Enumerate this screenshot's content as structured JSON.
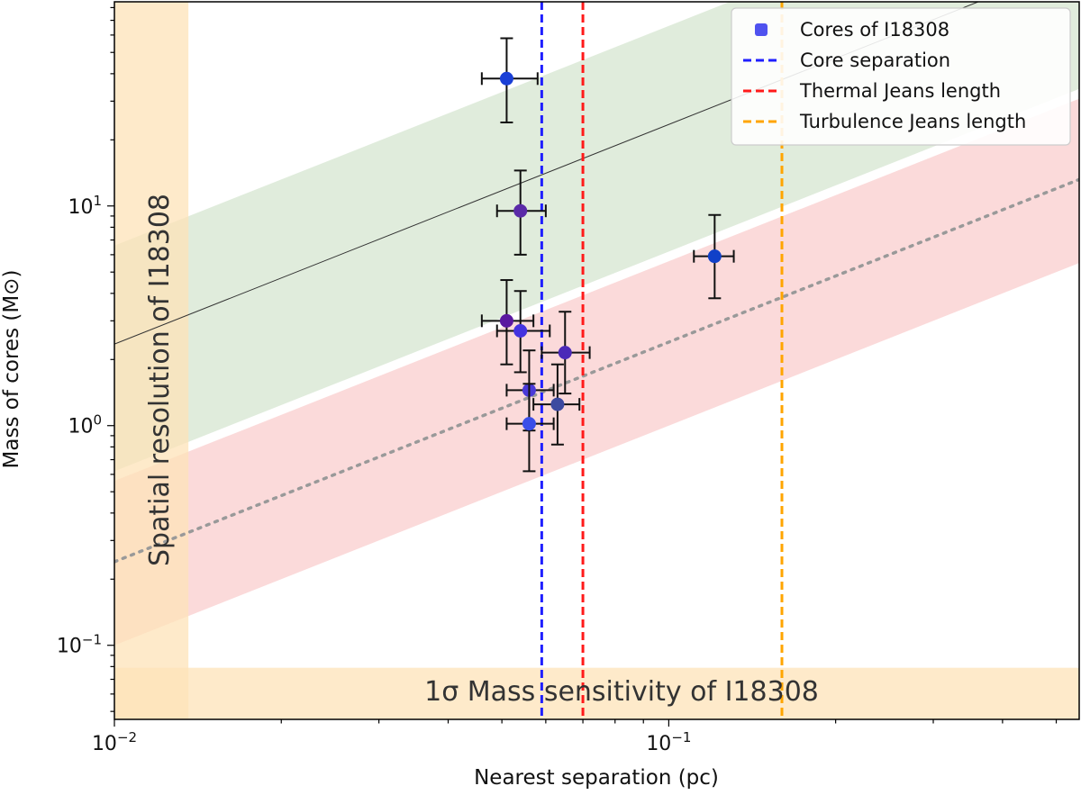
{
  "chart_data": {
    "type": "scatter",
    "xscale": "log",
    "yscale": "log",
    "xlim": [
      0.01,
      0.55
    ],
    "ylim": [
      0.046,
      85
    ],
    "xlabel": "Nearest separation (pc)",
    "ylabel": "Mass of cores (M⊙)",
    "x_ticks": [
      {
        "value": 0.01,
        "base": "10",
        "exp": "−2"
      },
      {
        "value": 0.1,
        "base": "10",
        "exp": "−1"
      }
    ],
    "y_ticks": [
      {
        "value": 0.1,
        "base": "10",
        "exp": "−1"
      },
      {
        "value": 1,
        "base": "10",
        "exp": "0"
      },
      {
        "value": 10,
        "base": "10",
        "exp": "1"
      }
    ],
    "series": [
      {
        "name": "Cores of I18308",
        "points": [
          {
            "x": 0.051,
            "y": 38,
            "xerr": [
              0.046,
              0.058
            ],
            "yerr": [
              24,
              58
            ],
            "color": "#1a3fd6"
          },
          {
            "x": 0.054,
            "y": 9.5,
            "xerr": [
              0.049,
              0.06
            ],
            "yerr": [
              6.0,
              14.5
            ],
            "color": "#5a2aa8"
          },
          {
            "x": 0.051,
            "y": 3.0,
            "xerr": [
              0.046,
              0.057
            ],
            "yerr": [
              1.9,
              4.6
            ],
            "color": "#5a18a0"
          },
          {
            "x": 0.054,
            "y": 2.7,
            "xerr": [
              0.049,
              0.061
            ],
            "yerr": [
              1.75,
              4.1
            ],
            "color": "#4433e0"
          },
          {
            "x": 0.065,
            "y": 2.15,
            "xerr": [
              0.059,
              0.072
            ],
            "yerr": [
              1.4,
              3.3
            ],
            "color": "#4b2ab8"
          },
          {
            "x": 0.056,
            "y": 1.45,
            "xerr": [
              0.051,
              0.062
            ],
            "yerr": [
              0.95,
              2.2
            ],
            "color": "#4a3ad8"
          },
          {
            "x": 0.063,
            "y": 1.25,
            "xerr": [
              0.057,
              0.069
            ],
            "yerr": [
              0.82,
              1.9
            ],
            "color": "#3c4aa0"
          },
          {
            "x": 0.056,
            "y": 1.02,
            "xerr": [
              0.051,
              0.062
            ],
            "yerr": [
              0.62,
              1.55
            ],
            "color": "#3a4ee8"
          },
          {
            "x": 0.121,
            "y": 5.9,
            "xerr": [
              0.111,
              0.131
            ],
            "yerr": [
              3.8,
              9.1
            ],
            "color": "#1040c8"
          }
        ]
      }
    ],
    "vlines": [
      {
        "name": "Core separation",
        "x": 0.059,
        "color": "#1f1fff"
      },
      {
        "name": "Thermal Jeans length",
        "x": 0.07,
        "color": "#ff1a1a"
      },
      {
        "name": "Turbulence Jeans length",
        "x": 0.16,
        "color": "#ffa500"
      }
    ],
    "thermal_band": {
      "slope": 1,
      "anchor_x": 0.01,
      "center_y": 0.24,
      "lower_y": 0.1,
      "upper_y": 0.56,
      "color": "#f9c6c6"
    },
    "turbulent_band": {
      "slope": 1,
      "anchor_x": 0.01,
      "center_y": 2.35,
      "lower_y": 0.62,
      "upper_y": 6.6,
      "color": "#cfe2c9"
    },
    "resolution_band": {
      "x_min": 0.01,
      "x_max": 0.0136,
      "color": "#fde3b8"
    },
    "sensitivity_band": {
      "y_min": 0.046,
      "y_max": 0.079,
      "color": "#fde3b8"
    },
    "annotations": {
      "resolution": "Spatial resolution of I18308",
      "sensitivity": "1σ Mass sensitivity of I18308"
    },
    "legend": {
      "placement": "top-right",
      "entries": [
        {
          "label": "Cores of I18308",
          "kind": "marker",
          "color": "#4f52ef"
        },
        {
          "label": "Core separation",
          "kind": "dash",
          "color": "#1f1fff"
        },
        {
          "label": "Thermal Jeans length",
          "kind": "dash",
          "color": "#ff1a1a"
        },
        {
          "label": "Turbulence Jeans length",
          "kind": "dash",
          "color": "#ffa500"
        }
      ]
    }
  }
}
